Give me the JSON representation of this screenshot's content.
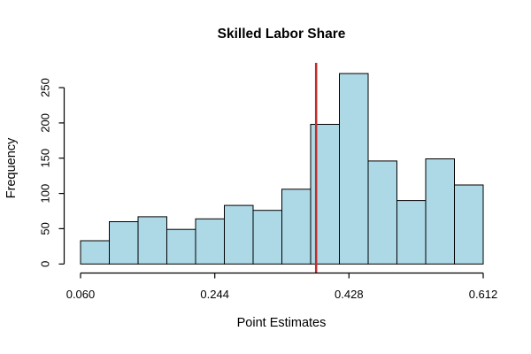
{
  "page": {
    "background": "#ffffff"
  },
  "chart_data": {
    "type": "histogram",
    "title": "Skilled Labor Share",
    "xlabel": "Point Estimates",
    "ylabel": "Frequency",
    "bar_fill": "#ADD8E6",
    "bar_stroke": "#000000",
    "axis_color": "#000000",
    "text_color": "#000000",
    "grid": false,
    "legend": null,
    "xlim": [
      0.06,
      0.612
    ],
    "ylim": [
      0,
      250
    ],
    "bin_count": 14,
    "bin_width": 0.0394,
    "counts": [
      33,
      60,
      67,
      49,
      64,
      83,
      76,
      106,
      198,
      270,
      146,
      90,
      149,
      112
    ],
    "x_ticks": [
      {
        "value": 0.06,
        "label": "0.060"
      },
      {
        "value": 0.244,
        "label": "0.244"
      },
      {
        "value": 0.428,
        "label": "0.428"
      },
      {
        "value": 0.612,
        "label": "0.612"
      }
    ],
    "y_ticks": [
      {
        "value": 0,
        "label": "0"
      },
      {
        "value": 50,
        "label": "50"
      },
      {
        "value": 100,
        "label": "100"
      },
      {
        "value": 150,
        "label": "150"
      },
      {
        "value": 200,
        "label": "200"
      },
      {
        "value": 250,
        "label": "250"
      }
    ],
    "vline": {
      "x": 0.383,
      "color": "#C22B2B",
      "width": 2.5
    }
  }
}
